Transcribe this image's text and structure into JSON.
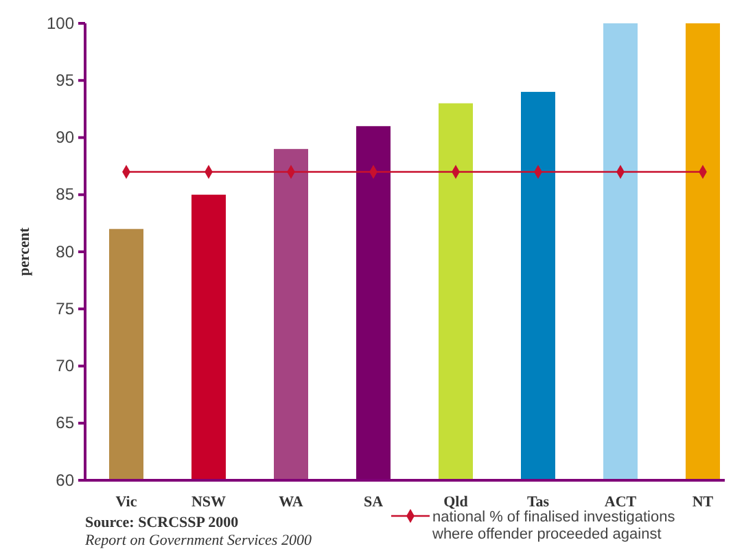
{
  "chart_data": {
    "type": "bar",
    "ylabel": "percent",
    "categories": [
      "Vic",
      "NSW",
      "WA",
      "SA",
      "Qld",
      "Tas",
      "ACT",
      "NT"
    ],
    "series": [
      {
        "colors": [
          "#b58a45",
          "#c8002a",
          "#a54482",
          "#7a006a",
          "#c5de38",
          "#0080bd",
          "#9bd1ee",
          "#f0a800"
        ],
        "values": [
          82,
          85,
          89,
          91,
          93,
          94,
          100,
          100
        ]
      },
      {
        "type": "line",
        "name": "national % of finalised investigations where offender proceeded against",
        "color": "#c8102e",
        "marker": "diamond",
        "values": [
          87,
          87,
          87,
          87,
          87,
          87,
          87,
          87
        ]
      }
    ],
    "ylim": [
      60,
      100
    ],
    "yticks": [
      60,
      65,
      70,
      75,
      80,
      85,
      90,
      95,
      100
    ],
    "grid": false,
    "legend": "bottom right",
    "annotations": [
      "Source: SCRCSSP 2000",
      "Report on Government Services 2000"
    ]
  }
}
